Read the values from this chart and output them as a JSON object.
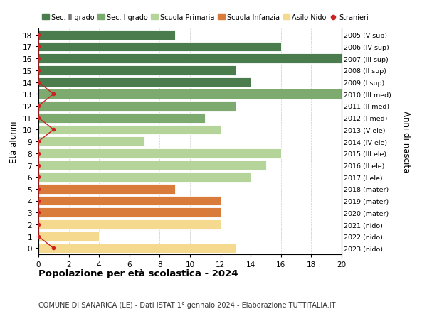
{
  "ages": [
    18,
    17,
    16,
    15,
    14,
    13,
    12,
    11,
    10,
    9,
    8,
    7,
    6,
    5,
    4,
    3,
    2,
    1,
    0
  ],
  "right_labels": [
    "2005 (V sup)",
    "2006 (IV sup)",
    "2007 (III sup)",
    "2008 (II sup)",
    "2009 (I sup)",
    "2010 (III med)",
    "2011 (II med)",
    "2012 (I med)",
    "2013 (V ele)",
    "2014 (IV ele)",
    "2015 (III ele)",
    "2016 (II ele)",
    "2017 (I ele)",
    "2018 (mater)",
    "2019 (mater)",
    "2020 (mater)",
    "2021 (nido)",
    "2022 (nido)",
    "2023 (nido)"
  ],
  "bar_values": [
    9,
    16,
    20,
    13,
    14,
    20,
    13,
    11,
    12,
    7,
    16,
    15,
    14,
    9,
    12,
    12,
    12,
    4,
    13
  ],
  "bar_colors": [
    "#4a7c4e",
    "#4a7c4e",
    "#4a7c4e",
    "#4a7c4e",
    "#4a7c4e",
    "#7daa6e",
    "#7daa6e",
    "#7daa6e",
    "#b5d49a",
    "#b5d49a",
    "#b5d49a",
    "#b5d49a",
    "#b5d49a",
    "#d97b3a",
    "#d97b3a",
    "#d97b3a",
    "#f5d98e",
    "#f5d98e",
    "#f5d98e"
  ],
  "stranieri_values": [
    0,
    0,
    0,
    0,
    0,
    1,
    0,
    0,
    1,
    0,
    0,
    0,
    0,
    0,
    0,
    0,
    0,
    0,
    1
  ],
  "stranieri_color": "#cc2222",
  "legend_labels": [
    "Sec. II grado",
    "Sec. I grado",
    "Scuola Primaria",
    "Scuola Infanzia",
    "Asilo Nido",
    "Stranieri"
  ],
  "legend_colors": [
    "#4a7c4e",
    "#7daa6e",
    "#b5d49a",
    "#d97b3a",
    "#f5d98e",
    "#cc2222"
  ],
  "ylabel": "Età alunni",
  "ylabel2": "Anni di nascita",
  "title": "Popolazione per età scolastica - 2024",
  "subtitle": "COMUNE DI SANARICA (LE) - Dati ISTAT 1° gennaio 2024 - Elaborazione TUTTITALIA.IT",
  "xlim": [
    0,
    20
  ],
  "xticks": [
    0,
    2,
    4,
    6,
    8,
    10,
    12,
    14,
    16,
    18,
    20
  ],
  "bar_height": 0.82
}
